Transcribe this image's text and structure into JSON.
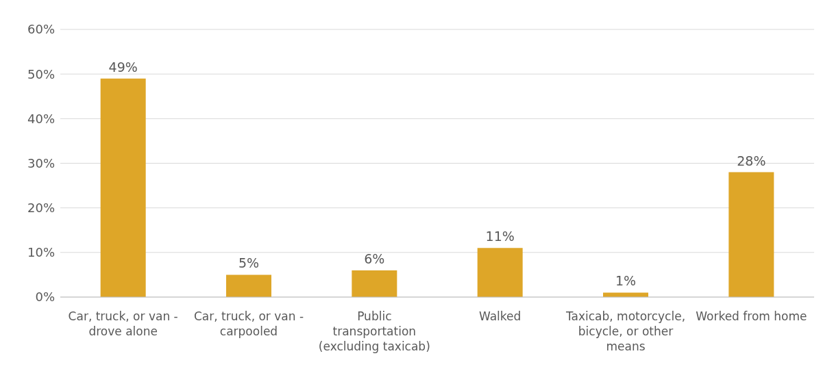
{
  "chart_data": {
    "type": "bar",
    "categories": [
      "Car, truck, or van - drove alone",
      "Car, truck, or van - carpooled",
      "Public transportation (excluding taxicab)",
      "Walked",
      "Taxicab, motorcycle, bicycle, or other means",
      "Worked from home"
    ],
    "values": [
      49,
      5,
      6,
      11,
      1,
      28
    ],
    "value_labels": [
      "49%",
      "5%",
      "6%",
      "11%",
      "1%",
      "28%"
    ],
    "color": "#dea628",
    "ylim": [
      0,
      60
    ],
    "yticks": [
      {
        "value": 0,
        "label": "0%"
      },
      {
        "value": 10,
        "label": "10%"
      },
      {
        "value": 20,
        "label": "20%"
      },
      {
        "value": 30,
        "label": "30%"
      },
      {
        "value": 40,
        "label": "40%"
      },
      {
        "value": 50,
        "label": "50%"
      },
      {
        "value": 60,
        "label": "60%"
      }
    ],
    "grid": "y"
  }
}
